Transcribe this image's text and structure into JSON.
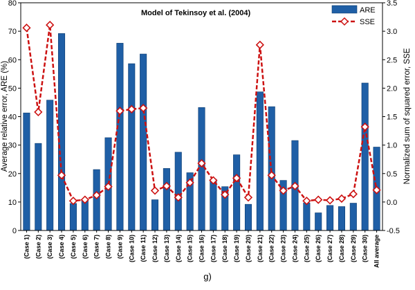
{
  "chart_data": {
    "type": "bar",
    "title": "Model of Tekinsoy et al. (2004)",
    "panel_label": "g)",
    "categories": [
      "(Case 1)",
      "(Case 2)",
      "(Case 3)",
      "(Case 4)",
      "(Case 5)",
      "(Case 6)",
      "(Case 7)",
      "(Case 8)",
      "(Case 9)",
      "(Case 10)",
      "(Case 11)",
      "(Case 12)",
      "(Case 13)",
      "(Case 14)",
      "(Case 15)",
      "(Case 16)",
      "(Case 17)",
      "(Case 18)",
      "(Case 19)",
      "(Case 20)",
      "(Case 21)",
      "(Case 22)",
      "(Case 23)",
      "(Case 24)",
      "(Case 25)",
      "(Case 26)",
      "(Case 27)",
      "(Case 28)",
      "(Case 29)",
      "(Case 30)",
      "All average"
    ],
    "series": [
      {
        "name": "ARE",
        "kind": "bar",
        "axis": "left",
        "color": "#1f5fa6",
        "values": [
          41.3,
          30.6,
          45.8,
          69.2,
          9.5,
          10.8,
          21.4,
          32.6,
          65.8,
          58.6,
          62.0,
          10.8,
          21.8,
          27.5,
          20.3,
          43.2,
          18.0,
          15.4,
          26.6,
          9.2,
          48.7,
          43.5,
          17.6,
          31.6,
          9.7,
          6.2,
          8.8,
          8.4,
          9.6,
          51.8,
          29.3
        ]
      },
      {
        "name": "SSE",
        "kind": "line",
        "axis": "right",
        "color": "#cc1111",
        "values": [
          3.06,
          1.58,
          3.11,
          0.47,
          0.02,
          0.04,
          0.12,
          0.27,
          1.6,
          1.63,
          1.65,
          0.2,
          0.28,
          0.08,
          0.34,
          0.68,
          0.38,
          0.13,
          0.42,
          0.08,
          2.76,
          0.47,
          0.2,
          0.28,
          0.02,
          0.04,
          0.03,
          0.06,
          0.14,
          1.32,
          0.21
        ]
      }
    ],
    "ylabel": "Average relative error, ARE (%)",
    "ylabel_right": "Normalized sum of squared error, SSE",
    "ylim": [
      0,
      80
    ],
    "ylim_right": [
      -0.5,
      3.5
    ],
    "yticks": [
      "0",
      "10",
      "20",
      "30",
      "40",
      "50",
      "60",
      "70",
      "80"
    ],
    "yticks_right": [
      "-0.5",
      "0.0",
      "0.5",
      "1.0",
      "1.5",
      "2.0",
      "2.5",
      "3.0",
      "3.5"
    ],
    "grid": false,
    "legend_position": "top-right"
  }
}
